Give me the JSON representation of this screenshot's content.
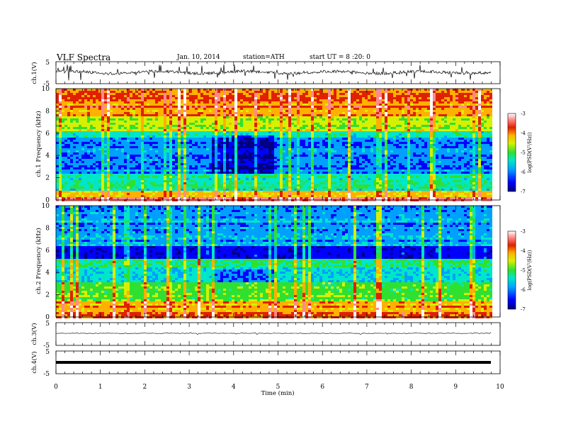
{
  "header": {
    "title": "VLF Spectra",
    "date": "Jan. 10, 2014",
    "station": "station=ATH",
    "start": "start UT = 8 :20: 0"
  },
  "chart_data": [
    {
      "type": "line",
      "panel": "ch1-waveform",
      "ylabel": "ch.1(V)",
      "yticks": [
        "5",
        "-5"
      ],
      "ylim": [
        -5,
        5
      ]
    },
    {
      "type": "heatmap",
      "panel": "ch1-spectrogram",
      "ylabel": "ch.1 Frequency (kHz)",
      "yticks": [
        "0",
        "2",
        "4",
        "6",
        "8",
        "10"
      ],
      "ylim": [
        0,
        10
      ],
      "xlim": [
        0,
        10
      ],
      "colorbar": {
        "label": "log(PSD(V²/Hz))",
        "ticks": [
          "-3",
          "-4",
          "-5",
          "-6",
          "-7"
        ],
        "range": [
          -7,
          -3
        ],
        "colors": [
          "#000080",
          "#0000ff",
          "#00a0ff",
          "#00e6c8",
          "#30e030",
          "#d8f000",
          "#ffb000",
          "#e02000",
          "#ff8a8a",
          "#ffffff"
        ]
      }
    },
    {
      "type": "heatmap",
      "panel": "ch2-spectrogram",
      "ylabel": "ch.2 Frequency (kHz)",
      "yticks": [
        "0",
        "2",
        "4",
        "6",
        "8",
        "10"
      ],
      "ylim": [
        0,
        10
      ],
      "xlim": [
        0,
        10
      ],
      "colorbar": {
        "label": "log(PSD(V²/Hz))",
        "ticks": [
          "-3",
          "-4",
          "-5",
          "-6",
          "-7"
        ],
        "range": [
          -7,
          -3
        ]
      }
    },
    {
      "type": "line",
      "panel": "ch3-waveform",
      "ylabel": "ch.3(V)",
      "yticks": [
        "5",
        "-5"
      ],
      "ylim": [
        -5,
        5
      ]
    },
    {
      "type": "line",
      "panel": "ch4-waveform",
      "ylabel": "ch.4(V)",
      "yticks": [
        "5",
        "-5"
      ],
      "ylim": [
        -5,
        5
      ]
    }
  ],
  "xaxis": {
    "label": "Time (min)",
    "ticks": [
      "0",
      "1",
      "2",
      "3",
      "4",
      "5",
      "6",
      "7",
      "8",
      "9",
      "10"
    ],
    "range": [
      0,
      10
    ]
  }
}
